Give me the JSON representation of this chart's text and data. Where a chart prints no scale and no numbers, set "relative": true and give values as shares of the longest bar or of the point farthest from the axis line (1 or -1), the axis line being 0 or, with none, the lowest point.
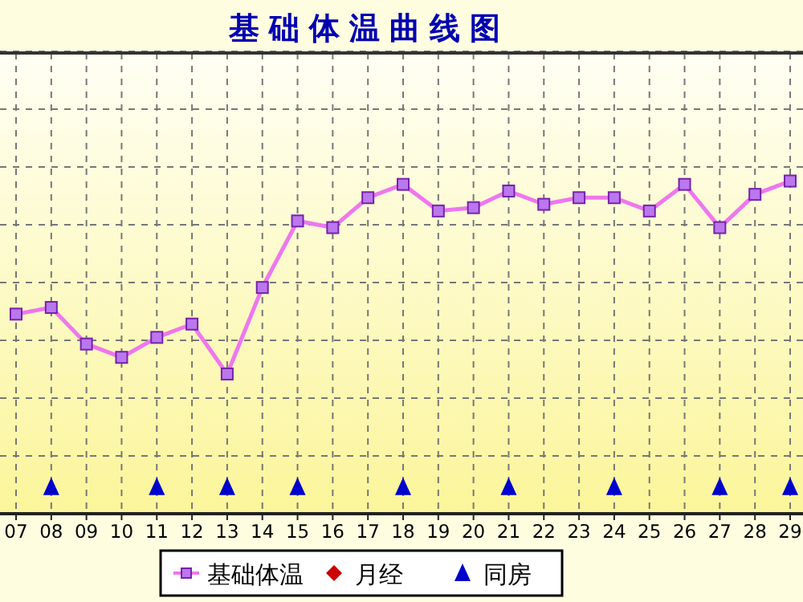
{
  "chart_data": {
    "type": "line",
    "title": "基础体温曲线图",
    "categories": [
      "07",
      "08",
      "09",
      "10",
      "11",
      "12",
      "13",
      "14",
      "15",
      "16",
      "17",
      "18",
      "19",
      "20",
      "21",
      "22",
      "23",
      "24",
      "25",
      "26",
      "27",
      "28",
      "29"
    ],
    "relative": true,
    "grid": true,
    "legend": "bottom",
    "series": [
      {
        "name": "基础体温",
        "type": "line",
        "color": "#ee77ee",
        "marker": "square",
        "values": [
          0.6,
          0.62,
          0.51,
          0.47,
          0.53,
          0.57,
          0.42,
          0.68,
          0.88,
          0.86,
          0.95,
          0.99,
          0.91,
          0.92,
          0.97,
          0.93,
          0.95,
          0.95,
          0.91,
          0.99,
          0.86,
          0.96,
          1
        ]
      },
      {
        "name": "月经",
        "type": "scatter",
        "color": "#cc0000",
        "marker": "diamond",
        "values": [
          null,
          null,
          null,
          null,
          null,
          null,
          null,
          null,
          null,
          null,
          null,
          null,
          null,
          null,
          null,
          null,
          null,
          null,
          null,
          null,
          null,
          null,
          null
        ]
      },
      {
        "name": "同房",
        "type": "scatter",
        "color": "#0000cc",
        "marker": "triangle",
        "values": [
          null,
          0.08,
          null,
          null,
          0.08,
          null,
          0.08,
          null,
          0.08,
          null,
          null,
          0.08,
          null,
          null,
          0.08,
          null,
          null,
          0.08,
          null,
          null,
          0.08,
          null,
          0.08
        ]
      }
    ]
  }
}
